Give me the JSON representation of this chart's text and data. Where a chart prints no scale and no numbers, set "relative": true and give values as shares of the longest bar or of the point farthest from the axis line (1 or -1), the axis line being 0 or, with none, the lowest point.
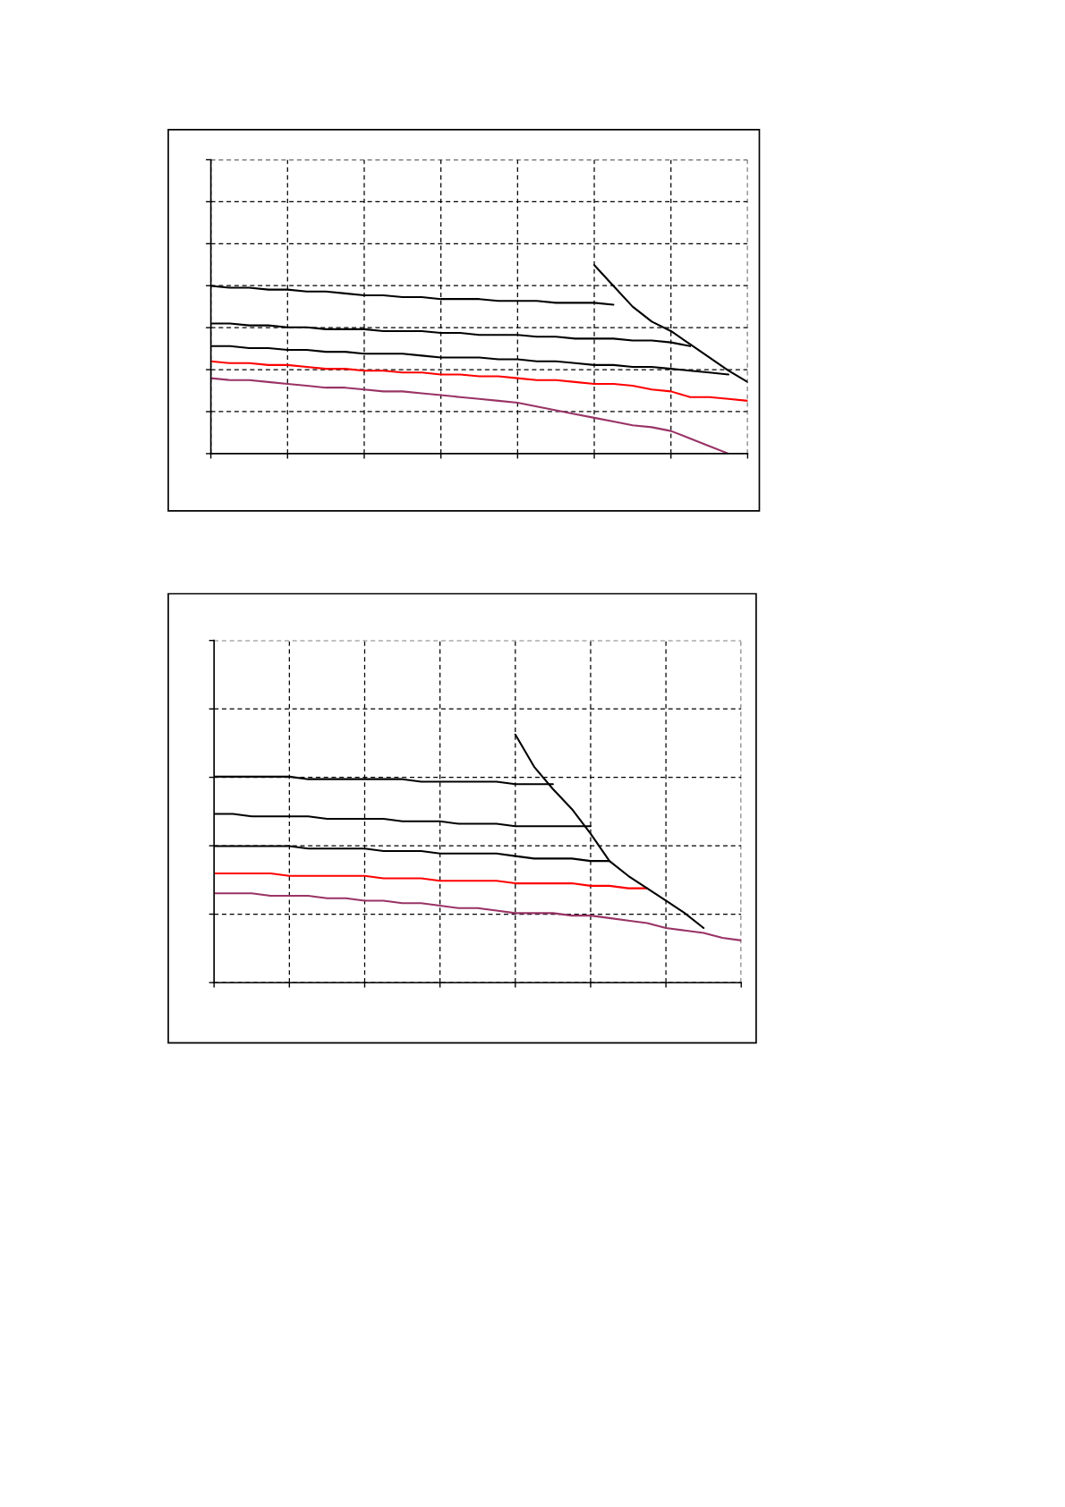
{
  "chart_data": [
    {
      "type": "line",
      "relative": true,
      "grid": true,
      "tick_labels": false,
      "categories": [
        null,
        null,
        null,
        null,
        null,
        null,
        null,
        null,
        null,
        null,
        null,
        null,
        null,
        null,
        null,
        null,
        null,
        null,
        null,
        null,
        null,
        null,
        null,
        null,
        null,
        null,
        null,
        null,
        null
      ],
      "series": [
        {
          "color": "#000000",
          "values": [
            0.89,
            0.88,
            0.88,
            0.87,
            0.87,
            0.86,
            0.86,
            0.85,
            0.84,
            0.84,
            0.83,
            0.83,
            0.82,
            0.82,
            0.82,
            0.81,
            0.81,
            0.81,
            0.8,
            0.8,
            0.8,
            0.79,
            null,
            null,
            null,
            null,
            null,
            null,
            null
          ]
        },
        {
          "color": "#000000",
          "values": [
            0.69,
            0.69,
            0.68,
            0.68,
            0.67,
            0.67,
            0.66,
            0.66,
            0.66,
            0.65,
            0.65,
            0.65,
            0.64,
            0.64,
            0.63,
            0.63,
            0.63,
            0.62,
            0.62,
            0.61,
            0.61,
            0.61,
            0.6,
            0.6,
            0.59,
            0.57,
            null,
            null,
            null
          ]
        },
        {
          "color": "#000000",
          "values": [
            0.57,
            0.57,
            0.56,
            0.56,
            0.55,
            0.55,
            0.54,
            0.54,
            0.53,
            0.53,
            0.53,
            0.52,
            0.51,
            0.51,
            0.51,
            0.5,
            0.5,
            0.49,
            0.49,
            0.48,
            0.47,
            0.47,
            0.46,
            0.46,
            0.45,
            0.44,
            0.43,
            0.42,
            null
          ]
        },
        {
          "color": "#ff0000",
          "values": [
            0.49,
            0.48,
            0.48,
            0.47,
            0.47,
            0.46,
            0.45,
            0.45,
            0.44,
            0.44,
            0.43,
            0.43,
            0.42,
            0.42,
            0.41,
            0.41,
            0.4,
            0.39,
            0.39,
            0.38,
            0.37,
            0.37,
            0.36,
            0.34,
            0.33,
            0.3,
            0.3,
            0.29,
            0.28
          ]
        },
        {
          "color": "#993366",
          "values": [
            0.4,
            0.39,
            0.39,
            0.38,
            0.37,
            0.36,
            0.35,
            0.35,
            0.34,
            0.33,
            0.33,
            0.32,
            0.31,
            0.3,
            0.29,
            0.28,
            0.27,
            0.25,
            0.23,
            0.21,
            0.19,
            0.17,
            0.15,
            0.14,
            0.12,
            0.08,
            0.04,
            0,
            null
          ]
        },
        {
          "color": "#000000",
          "values": [
            null,
            null,
            null,
            null,
            null,
            null,
            null,
            null,
            null,
            null,
            null,
            null,
            null,
            null,
            null,
            null,
            null,
            null,
            null,
            null,
            1,
            0.89,
            0.78,
            0.7,
            0.65,
            0.58,
            0.51,
            0.44,
            0.38
          ]
        }
      ]
    },
    {
      "type": "line",
      "relative": true,
      "grid": true,
      "tick_labels": false,
      "categories": [
        null,
        null,
        null,
        null,
        null,
        null,
        null,
        null,
        null,
        null,
        null,
        null,
        null,
        null,
        null,
        null,
        null,
        null,
        null,
        null,
        null,
        null,
        null,
        null,
        null,
        null,
        null,
        null,
        null
      ],
      "series": [
        {
          "color": "#000000",
          "values": [
            0.83,
            0.83,
            0.83,
            0.83,
            0.83,
            0.82,
            0.82,
            0.82,
            0.82,
            0.82,
            0.82,
            0.81,
            0.81,
            0.81,
            0.81,
            0.81,
            0.8,
            0.8,
            0.8,
            null,
            null,
            null,
            null,
            null,
            null,
            null,
            null,
            null,
            null
          ]
        },
        {
          "color": "#000000",
          "values": [
            0.68,
            0.68,
            0.67,
            0.67,
            0.67,
            0.67,
            0.66,
            0.66,
            0.66,
            0.66,
            0.65,
            0.65,
            0.65,
            0.64,
            0.64,
            0.64,
            0.63,
            0.63,
            0.63,
            0.63,
            0.63,
            null,
            null,
            null,
            null,
            null,
            null,
            null,
            null
          ]
        },
        {
          "color": "#000000",
          "values": [
            0.55,
            0.55,
            0.55,
            0.55,
            0.55,
            0.54,
            0.54,
            0.54,
            0.54,
            0.53,
            0.53,
            0.53,
            0.52,
            0.52,
            0.52,
            0.52,
            0.51,
            0.5,
            0.5,
            0.5,
            0.49,
            0.49,
            null,
            null,
            null,
            null,
            null,
            null,
            null
          ]
        },
        {
          "color": "#ff0000",
          "values": [
            0.44,
            0.44,
            0.44,
            0.44,
            0.43,
            0.43,
            0.43,
            0.43,
            0.43,
            0.42,
            0.42,
            0.42,
            0.41,
            0.41,
            0.41,
            0.41,
            0.4,
            0.4,
            0.4,
            0.4,
            0.39,
            0.39,
            0.38,
            0.38,
            null,
            null,
            null,
            null,
            null
          ]
        },
        {
          "color": "#993366",
          "values": [
            0.36,
            0.36,
            0.36,
            0.35,
            0.35,
            0.35,
            0.34,
            0.34,
            0.33,
            0.33,
            0.32,
            0.32,
            0.31,
            0.3,
            0.3,
            0.29,
            0.28,
            0.28,
            0.28,
            0.27,
            0.27,
            0.26,
            0.25,
            0.24,
            0.22,
            0.21,
            0.2,
            0.18,
            0.17
          ]
        },
        {
          "color": "#000000",
          "values": [
            null,
            null,
            null,
            null,
            null,
            null,
            null,
            null,
            null,
            null,
            null,
            null,
            null,
            null,
            null,
            null,
            1,
            0.87,
            0.78,
            0.7,
            0.6,
            0.49,
            0.43,
            0.38,
            0.33,
            0.28,
            0.22,
            null,
            null
          ]
        }
      ]
    }
  ]
}
